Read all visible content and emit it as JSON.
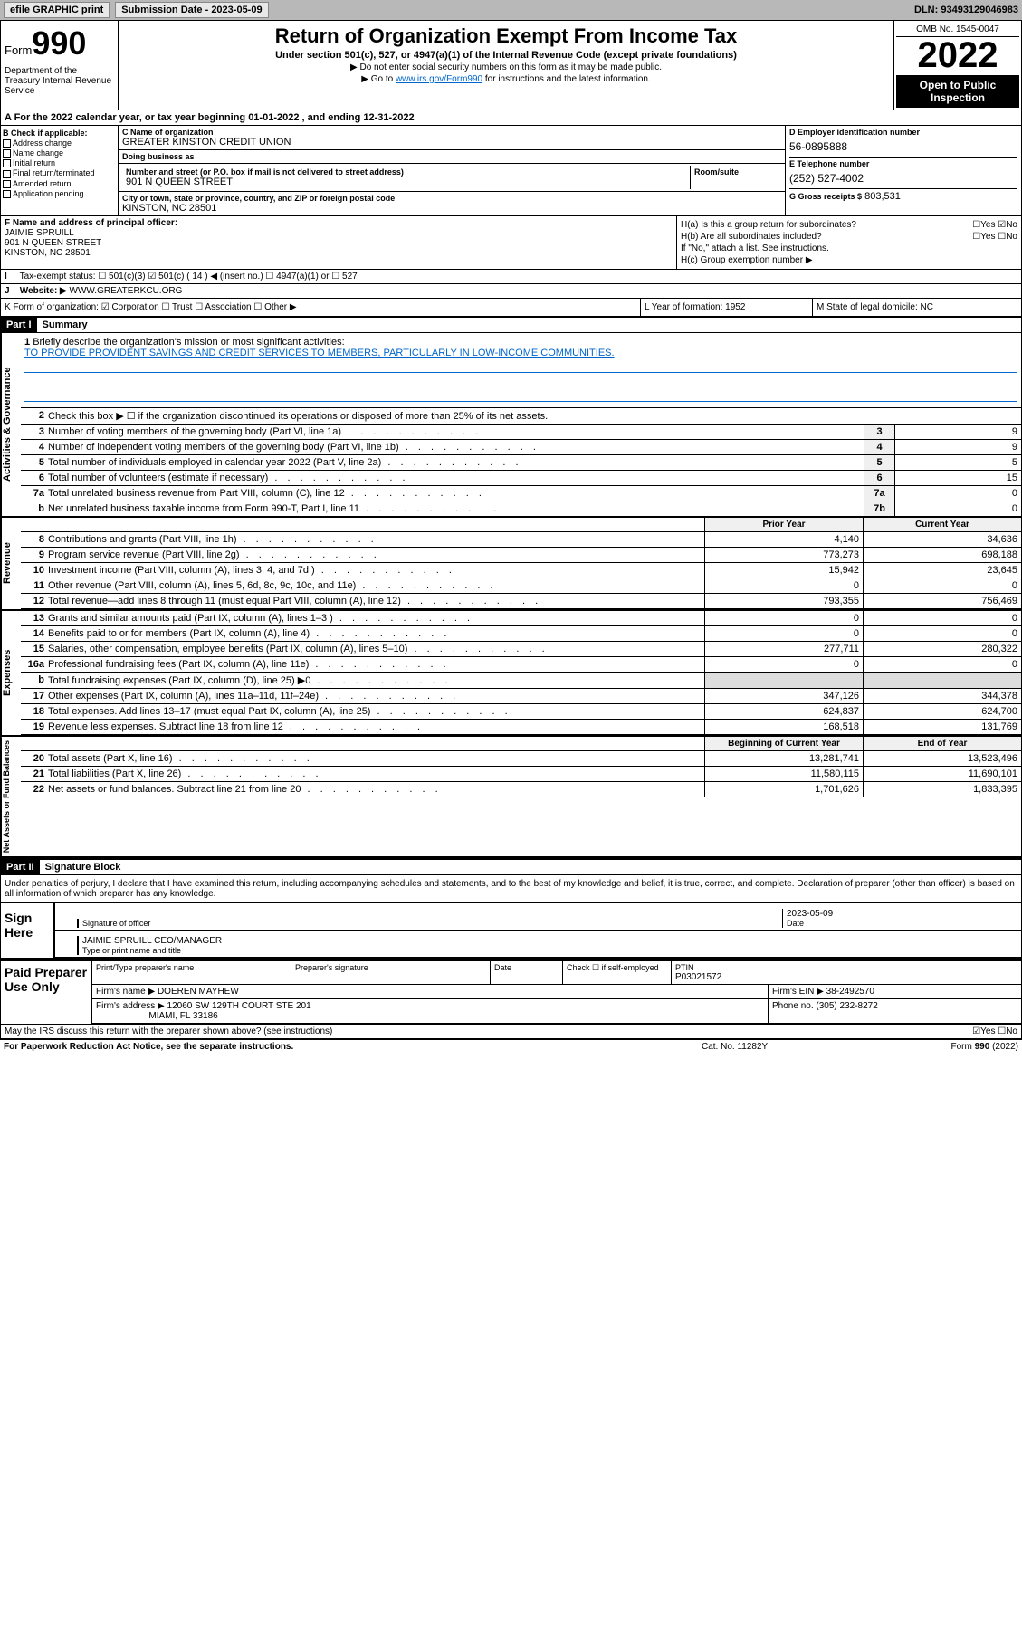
{
  "topbar": {
    "efile": "efile GRAPHIC print",
    "submission": "Submission Date - 2023-05-09",
    "dln": "DLN: 93493129046983"
  },
  "header": {
    "form_label": "Form",
    "form_number": "990",
    "dept": "Department of the Treasury Internal Revenue Service",
    "title": "Return of Organization Exempt From Income Tax",
    "subtitle": "Under section 501(c), 527, or 4947(a)(1) of the Internal Revenue Code (except private foundations)",
    "note1": "▶ Do not enter social security numbers on this form as it may be made public.",
    "note2_pre": "▶ Go to ",
    "note2_link": "www.irs.gov/Form990",
    "note2_post": " for instructions and the latest information.",
    "omb": "OMB No. 1545-0047",
    "year": "2022",
    "open": "Open to Public Inspection"
  },
  "row_a": "A For the 2022 calendar year, or tax year beginning 01-01-2022 , and ending 12-31-2022",
  "col_b": {
    "label": "B Check if applicable:",
    "opts": [
      "Address change",
      "Name change",
      "Initial return",
      "Final return/terminated",
      "Amended return",
      "Application pending"
    ]
  },
  "col_c": {
    "name_label": "C Name of organization",
    "name": "GREATER KINSTON CREDIT UNION",
    "dba_label": "Doing business as",
    "dba": "",
    "addr_label": "Number and street (or P.O. box if mail is not delivered to street address)",
    "room_label": "Room/suite",
    "addr": "901 N QUEEN STREET",
    "city_label": "City or town, state or province, country, and ZIP or foreign postal code",
    "city": "KINSTON, NC  28501"
  },
  "col_d": {
    "ein_label": "D Employer identification number",
    "ein": "56-0895888",
    "tel_label": "E Telephone number",
    "tel": "(252) 527-4002",
    "gross_label": "G Gross receipts $",
    "gross": "803,531"
  },
  "fhi": {
    "f_label": "F Name and address of principal officer:",
    "f_name": "JAIMIE SPRUILL",
    "f_addr1": "901 N QUEEN STREET",
    "f_addr2": "KINSTON, NC  28501",
    "ha": "H(a)  Is this a group return for subordinates?",
    "ha_ans": "☐Yes ☑No",
    "hb": "H(b)  Are all subordinates included?",
    "hb_ans": "☐Yes ☐No",
    "hb_note": "If \"No,\" attach a list. See instructions.",
    "hc": "H(c)  Group exemption number ▶"
  },
  "row_i": {
    "label": "I",
    "text": "Tax-exempt status:",
    "opts": "☐ 501(c)(3)  ☑ 501(c) ( 14 ) ◀ (insert no.)  ☐ 4947(a)(1) or  ☐ 527"
  },
  "row_j": {
    "label": "J",
    "text": "Website: ▶",
    "val": "WWW.GREATERKCU.ORG"
  },
  "klm": {
    "k": "K Form of organization:  ☑ Corporation ☐ Trust ☐ Association ☐ Other ▶",
    "l": "L Year of formation: 1952",
    "m": "M State of legal domicile: NC"
  },
  "part1": {
    "hdr": "Part I",
    "title": "Summary",
    "q1_label": "1",
    "q1": "Briefly describe the organization's mission or most significant activities:",
    "q1_mission": "TO PROVIDE PROVIDENT SAVINGS AND CREDIT SERVICES TO MEMBERS, PARTICULARLY IN LOW-INCOME COMMUNITIES.",
    "q2": "Check this box ▶ ☐  if the organization discontinued its operations or disposed of more than 25% of its net assets.",
    "rows_gov": [
      {
        "n": "3",
        "t": "Number of voting members of the governing body (Part VI, line 1a)",
        "b": "3",
        "v": "9"
      },
      {
        "n": "4",
        "t": "Number of independent voting members of the governing body (Part VI, line 1b)",
        "b": "4",
        "v": "9"
      },
      {
        "n": "5",
        "t": "Total number of individuals employed in calendar year 2022 (Part V, line 2a)",
        "b": "5",
        "v": "5"
      },
      {
        "n": "6",
        "t": "Total number of volunteers (estimate if necessary)",
        "b": "6",
        "v": "15"
      },
      {
        "n": "7a",
        "t": "Total unrelated business revenue from Part VIII, column (C), line 12",
        "b": "7a",
        "v": "0"
      },
      {
        "n": "b",
        "t": "Net unrelated business taxable income from Form 990-T, Part I, line 11",
        "b": "7b",
        "v": "0"
      }
    ],
    "prior_hdr": "Prior Year",
    "current_hdr": "Current Year",
    "beg_hdr": "Beginning of Current Year",
    "end_hdr": "End of Year",
    "rev": [
      {
        "n": "8",
        "t": "Contributions and grants (Part VIII, line 1h)",
        "p": "4,140",
        "c": "34,636"
      },
      {
        "n": "9",
        "t": "Program service revenue (Part VIII, line 2g)",
        "p": "773,273",
        "c": "698,188"
      },
      {
        "n": "10",
        "t": "Investment income (Part VIII, column (A), lines 3, 4, and 7d )",
        "p": "15,942",
        "c": "23,645"
      },
      {
        "n": "11",
        "t": "Other revenue (Part VIII, column (A), lines 5, 6d, 8c, 9c, 10c, and 11e)",
        "p": "0",
        "c": "0"
      },
      {
        "n": "12",
        "t": "Total revenue—add lines 8 through 11 (must equal Part VIII, column (A), line 12)",
        "p": "793,355",
        "c": "756,469"
      }
    ],
    "exp": [
      {
        "n": "13",
        "t": "Grants and similar amounts paid (Part IX, column (A), lines 1–3 )",
        "p": "0",
        "c": "0"
      },
      {
        "n": "14",
        "t": "Benefits paid to or for members (Part IX, column (A), line 4)",
        "p": "0",
        "c": "0"
      },
      {
        "n": "15",
        "t": "Salaries, other compensation, employee benefits (Part IX, column (A), lines 5–10)",
        "p": "277,711",
        "c": "280,322"
      },
      {
        "n": "16a",
        "t": "Professional fundraising fees (Part IX, column (A), line 11e)",
        "p": "0",
        "c": "0"
      },
      {
        "n": "b",
        "t": "Total fundraising expenses (Part IX, column (D), line 25) ▶0",
        "p": "",
        "c": ""
      },
      {
        "n": "17",
        "t": "Other expenses (Part IX, column (A), lines 11a–11d, 11f–24e)",
        "p": "347,126",
        "c": "344,378"
      },
      {
        "n": "18",
        "t": "Total expenses. Add lines 13–17 (must equal Part IX, column (A), line 25)",
        "p": "624,837",
        "c": "624,700"
      },
      {
        "n": "19",
        "t": "Revenue less expenses. Subtract line 18 from line 12",
        "p": "168,518",
        "c": "131,769"
      }
    ],
    "net": [
      {
        "n": "20",
        "t": "Total assets (Part X, line 16)",
        "p": "13,281,741",
        "c": "13,523,496"
      },
      {
        "n": "21",
        "t": "Total liabilities (Part X, line 26)",
        "p": "11,580,115",
        "c": "11,690,101"
      },
      {
        "n": "22",
        "t": "Net assets or fund balances. Subtract line 21 from line 20",
        "p": "1,701,626",
        "c": "1,833,395"
      }
    ],
    "side_gov": "Activities & Governance",
    "side_rev": "Revenue",
    "side_exp": "Expenses",
    "side_net": "Net Assets or Fund Balances"
  },
  "part2": {
    "hdr": "Part II",
    "title": "Signature Block",
    "decl": "Under penalties of perjury, I declare that I have examined this return, including accompanying schedules and statements, and to the best of my knowledge and belief, it is true, correct, and complete. Declaration of preparer (other than officer) is based on all information of which preparer has any knowledge.",
    "sign_here": "Sign Here",
    "sig_officer": "Signature of officer",
    "sig_date": "2023-05-09",
    "date_label": "Date",
    "officer_name": "JAIMIE SPRUILL CEO/MANAGER",
    "name_label": "Type or print name and title",
    "paid_prep": "Paid Preparer Use Only",
    "prep_name_label": "Print/Type preparer's name",
    "prep_sig_label": "Preparer's signature",
    "prep_date_label": "Date",
    "prep_check": "Check ☐ if self-employed",
    "ptin_label": "PTIN",
    "ptin": "P03021572",
    "firm_name_label": "Firm's name      ▶",
    "firm_name": "DOEREN MAYHEW",
    "firm_ein_label": "Firm's EIN ▶",
    "firm_ein": "38-2492570",
    "firm_addr_label": "Firm's address ▶",
    "firm_addr1": "12060 SW 129TH COURT STE 201",
    "firm_addr2": "MIAMI, FL  33186",
    "phone_label": "Phone no.",
    "phone": "(305) 232-8272",
    "discuss": "May the IRS discuss this return with the preparer shown above? (see instructions)",
    "discuss_ans": "☑Yes ☐No"
  },
  "footer": {
    "paperwork": "For Paperwork Reduction Act Notice, see the separate instructions.",
    "cat": "Cat. No. 11282Y",
    "form": "Form 990 (2022)"
  }
}
